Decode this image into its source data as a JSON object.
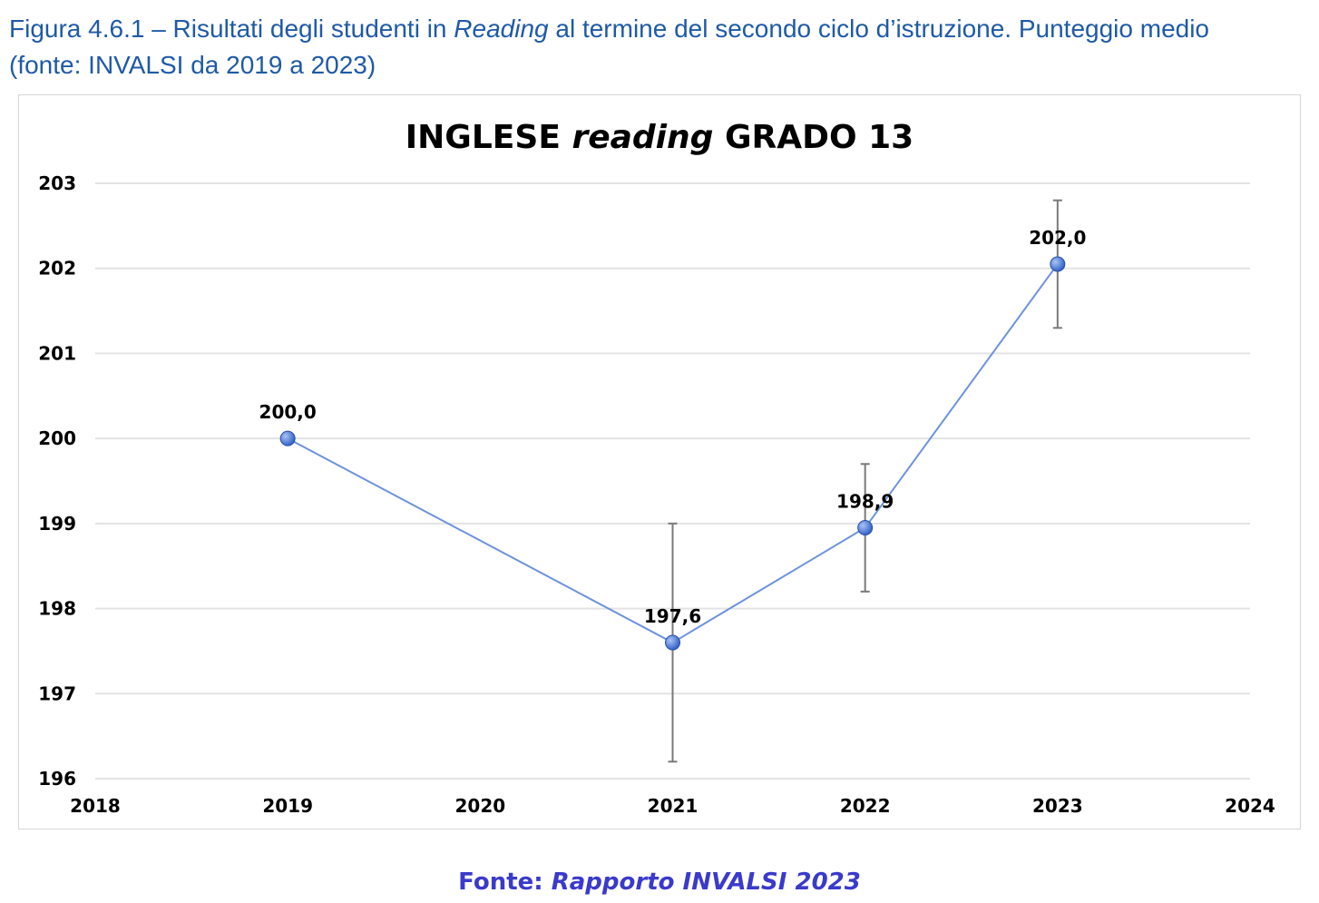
{
  "caption": {
    "line1_prefix": "Figura 4.6.1 – Risultati degli studenti in ",
    "line1_italic": "Reading",
    "line1_suffix": " al termine del secondo ciclo d’istruzione. Punteggio medio",
    "line2": "(fonte: INVALSI da 2019 a 2023)"
  },
  "source": {
    "prefix": "Fonte: ",
    "italic": "Rapporto INVALSI 2023"
  },
  "chart_data": {
    "type": "line",
    "title_parts": [
      "INGLESE ",
      "reading",
      " GRADO 13"
    ],
    "xlim": [
      2018,
      2024
    ],
    "ylim": [
      196,
      203
    ],
    "xticks": [
      "2018",
      "2019",
      "2020",
      "2021",
      "2022",
      "2023",
      "2024"
    ],
    "yticks": [
      "196",
      "197",
      "198",
      "199",
      "200",
      "201",
      "202",
      "203"
    ],
    "grid": true,
    "series": [
      {
        "x": [
          2019,
          2021,
          2022,
          2023
        ],
        "y": [
          200.0,
          197.6,
          198.95,
          202.05
        ],
        "labels": [
          "200,0",
          "197,6",
          "198,9",
          "202,0"
        ],
        "error_low": [
          null,
          196.2,
          198.2,
          201.3
        ],
        "error_high": [
          null,
          199.0,
          199.7,
          202.8
        ]
      }
    ],
    "colors": {
      "line": "#6d93d9",
      "marker": "#3563c9",
      "grid": "#e3e3e3",
      "error": "#7a7a7a"
    }
  }
}
